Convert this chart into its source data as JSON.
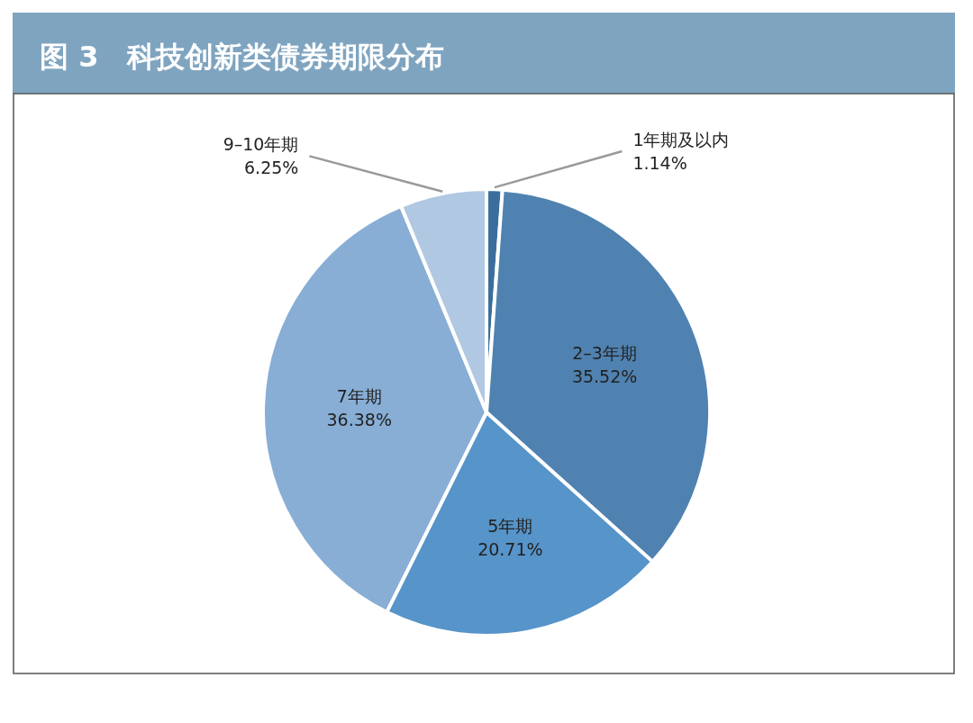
{
  "chart_data": {
    "type": "pie",
    "title": "图 3　科技创新类债券期限分布",
    "categories": [
      "1年期及以内",
      "2–3年期",
      "5年期",
      "7年期",
      "9–10年期"
    ],
    "values": [
      1.14,
      35.52,
      20.71,
      36.38,
      6.25
    ],
    "colors": [
      "#3b6e9c",
      "#4f82b1",
      "#5694c9",
      "#88aed5",
      "#b0c8e2"
    ],
    "value_labels": [
      "1.14%",
      "35.52%",
      "20.71%",
      "36.38%",
      "6.25%"
    ]
  }
}
